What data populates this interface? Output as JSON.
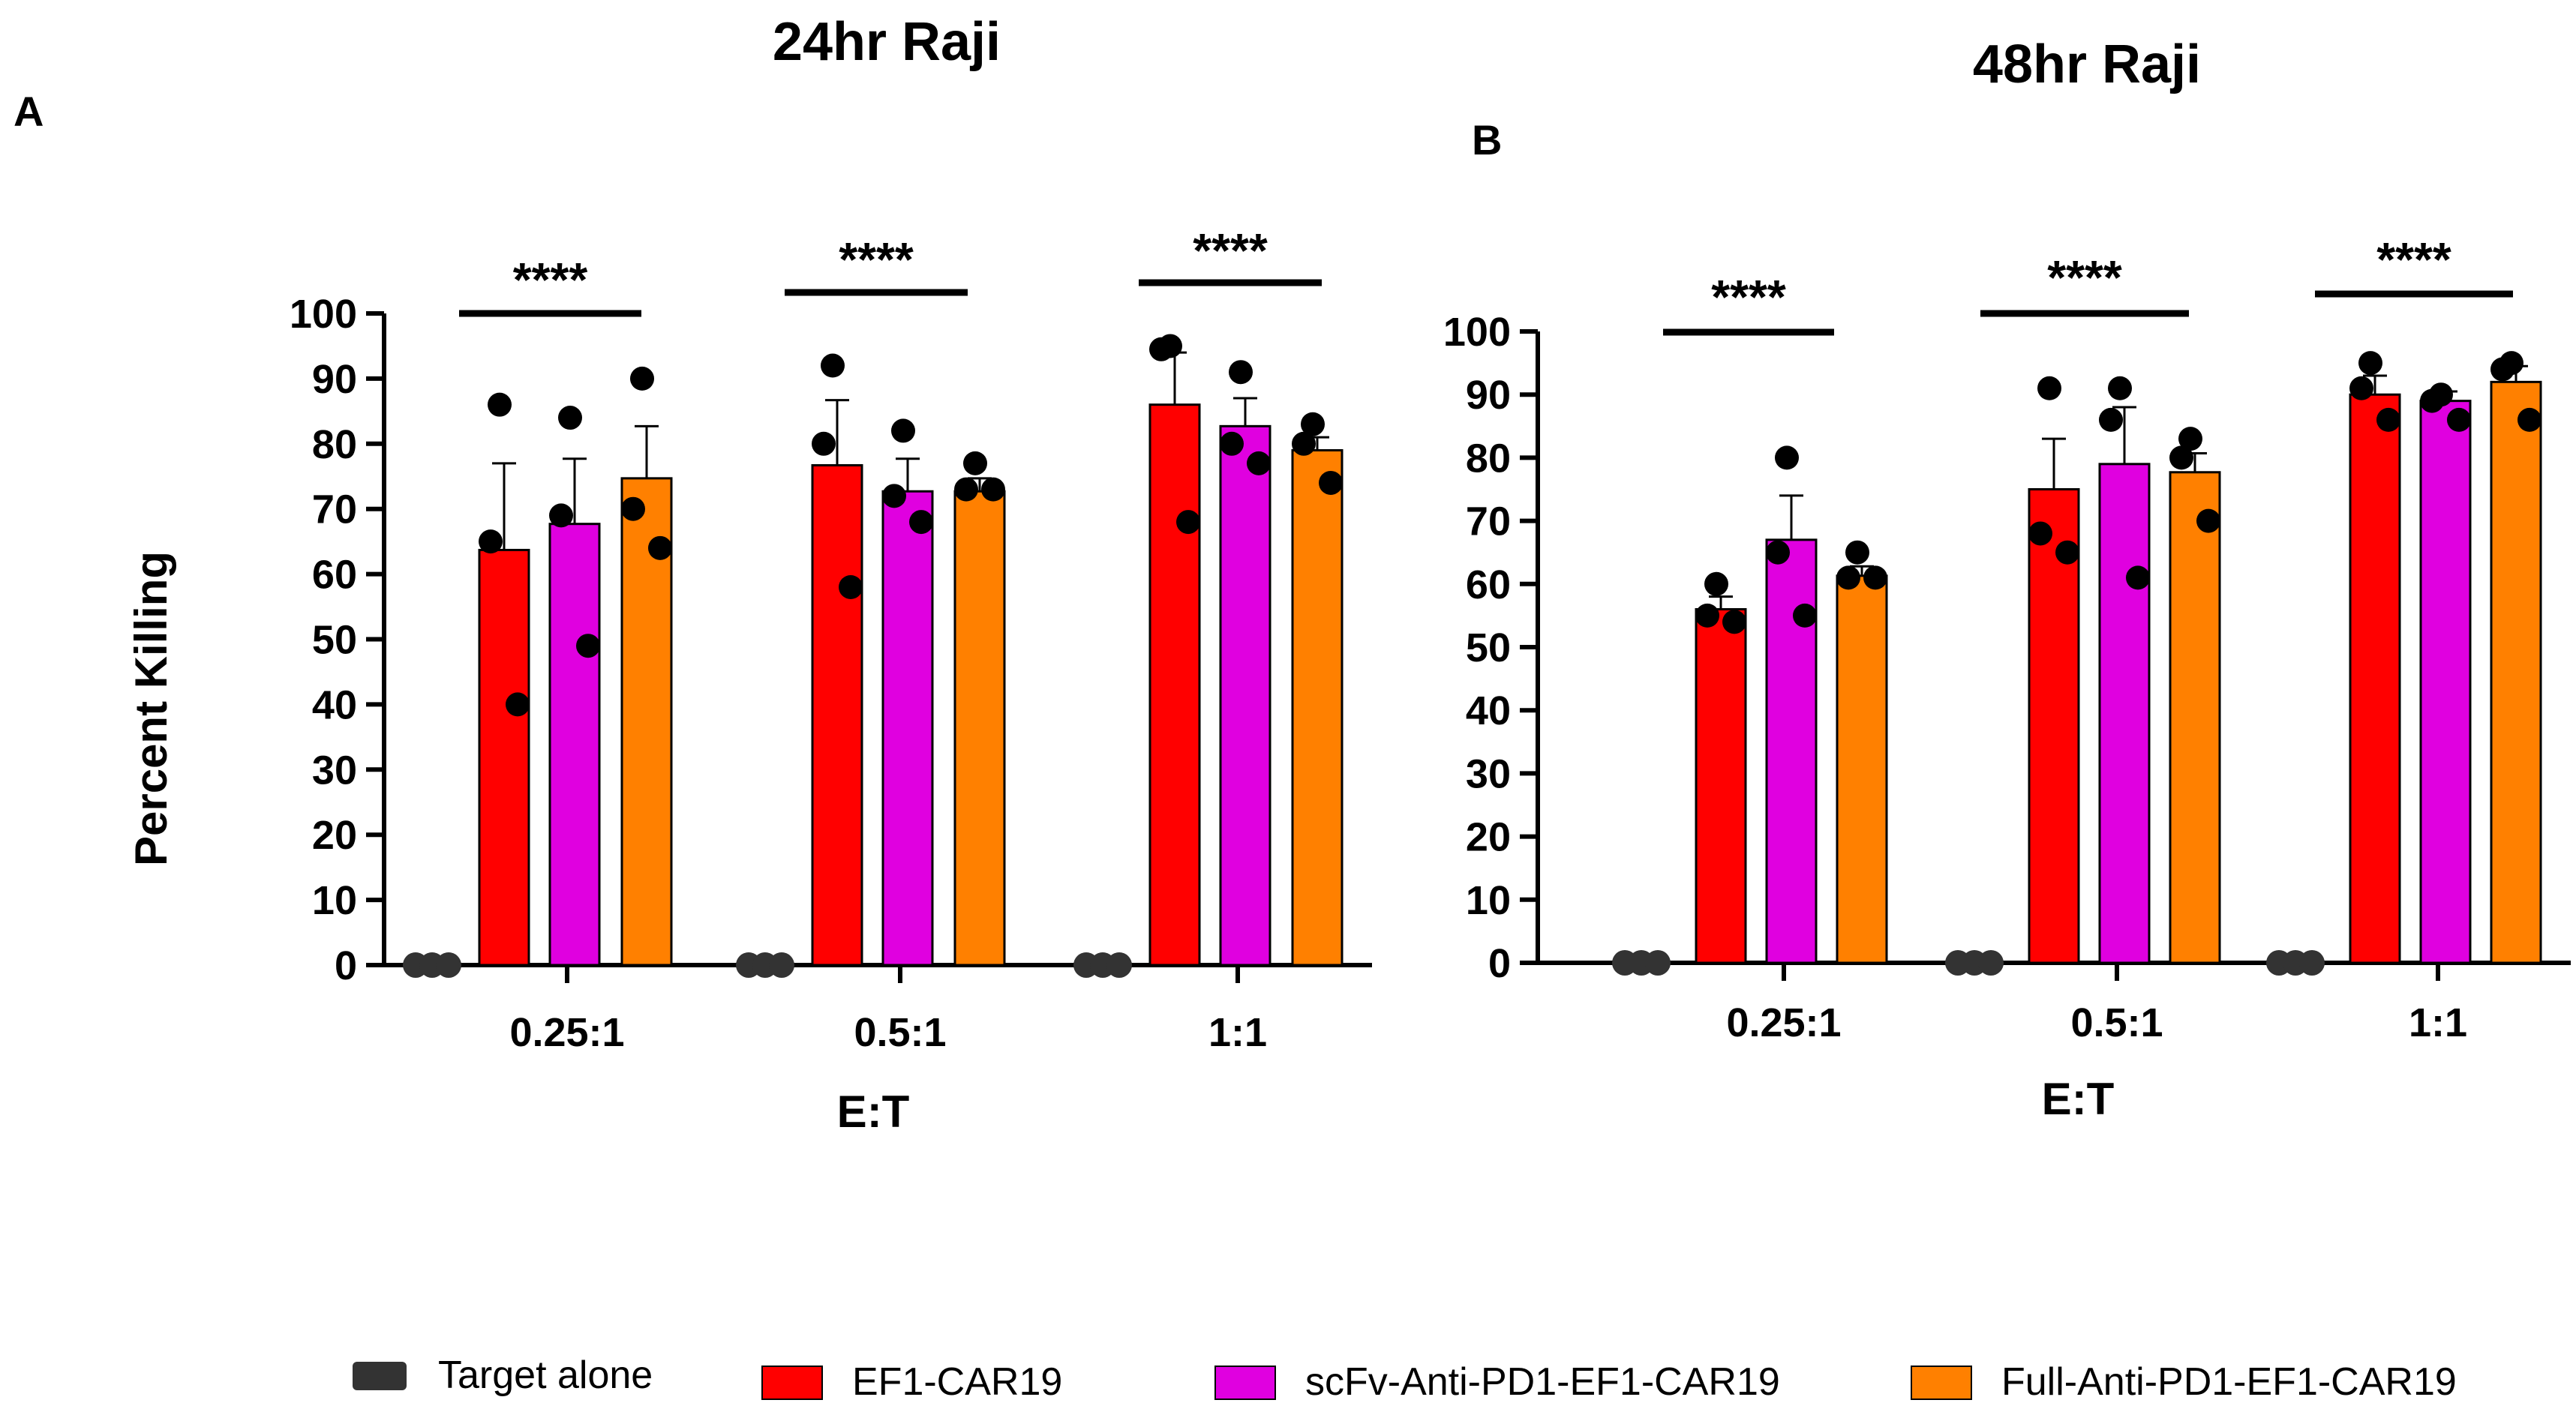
{
  "colors": {
    "target_alone": "#333333",
    "ef1_car19": "#ff0000",
    "scfv": "#e000e0",
    "full": "#ff8000",
    "axis": "#000000",
    "dot": "#000000"
  },
  "legend": [
    {
      "name": "Target alone",
      "color": "#333333"
    },
    {
      "name": "EF1-CAR19",
      "color": "#ff0000"
    },
    {
      "name": "scFv-Anti-PD1-EF1-CAR19",
      "color": "#e000e0"
    },
    {
      "name": "Full-Anti-PD1-EF1-CAR19",
      "color": "#ff8000"
    }
  ],
  "chart_data": [
    {
      "type": "bar",
      "panel_label": "A",
      "title": "24hr Raji",
      "xlabel": "E:T",
      "ylabel": "Percent Killing",
      "ylim": [
        0,
        100
      ],
      "yticks": [
        "0",
        "10",
        "20",
        "30",
        "40",
        "50",
        "60",
        "70",
        "80",
        "90",
        "100"
      ],
      "categories": [
        "0.25:1",
        "0.5:1",
        "1:1"
      ],
      "significance": [
        "****",
        "****",
        "****"
      ],
      "series": [
        {
          "name": "Target alone",
          "values": [
            0,
            0,
            0
          ],
          "errors": [
            0,
            0,
            0
          ],
          "points": [
            [
              0,
              0,
              0
            ],
            [
              0,
              0,
              0
            ],
            [
              0,
              0,
              0
            ]
          ]
        },
        {
          "name": "EF1-CAR19",
          "values": [
            63.7,
            76.7,
            86
          ],
          "errors": [
            13.3,
            10,
            8
          ],
          "points": [
            [
              86,
              65,
              40
            ],
            [
              92,
              80,
              58
            ],
            [
              95,
              94.5,
              68
            ]
          ]
        },
        {
          "name": "scFv-Anti-PD1-EF1-CAR19",
          "values": [
            67.7,
            72.7,
            82.7
          ],
          "errors": [
            10,
            5,
            4.3
          ],
          "points": [
            [
              84,
              69,
              49
            ],
            [
              82,
              72,
              68
            ],
            [
              91,
              80,
              77
            ]
          ]
        },
        {
          "name": "Full-Anti-PD1-EF1-CAR19",
          "values": [
            74.7,
            72.7,
            79
          ],
          "errors": [
            8,
            2,
            2
          ],
          "points": [
            [
              90,
              70,
              64
            ],
            [
              77,
              73,
              73
            ],
            [
              83,
              80,
              74
            ]
          ]
        }
      ]
    },
    {
      "type": "bar",
      "panel_label": "B",
      "title": "48hr Raji",
      "xlabel": "E:T",
      "ylabel": "",
      "ylim": [
        0,
        100
      ],
      "yticks": [
        "0",
        "10",
        "20",
        "30",
        "40",
        "50",
        "60",
        "70",
        "80",
        "90",
        "100"
      ],
      "categories": [
        "0.25:1",
        "0.5:1",
        "1:1"
      ],
      "significance": [
        "****",
        "****",
        "****"
      ],
      "series": [
        {
          "name": "Target alone",
          "values": [
            0,
            0,
            0
          ],
          "errors": [
            0,
            0,
            0
          ],
          "points": [
            [
              0,
              0,
              0
            ],
            [
              0,
              0,
              0
            ],
            [
              0,
              0,
              0
            ]
          ]
        },
        {
          "name": "EF1-CAR19",
          "values": [
            56,
            75,
            90
          ],
          "errors": [
            2,
            8,
            3
          ],
          "points": [
            [
              60,
              55,
              54
            ],
            [
              91,
              68,
              65
            ],
            [
              95,
              91,
              86
            ]
          ]
        },
        {
          "name": "scFv-Anti-PD1-EF1-CAR19",
          "values": [
            67,
            79,
            89
          ],
          "errors": [
            7,
            9,
            1.5
          ],
          "points": [
            [
              80,
              65,
              55
            ],
            [
              91,
              86,
              61
            ],
            [
              90,
              89,
              86
            ]
          ]
        },
        {
          "name": "Full-Anti-PD1-EF1-CAR19",
          "values": [
            61.3,
            77.7,
            92
          ],
          "errors": [
            1.5,
            3,
            2.5
          ],
          "points": [
            [
              65,
              61,
              61
            ],
            [
              83,
              80,
              70
            ],
            [
              95,
              94,
              86
            ]
          ]
        }
      ]
    }
  ]
}
